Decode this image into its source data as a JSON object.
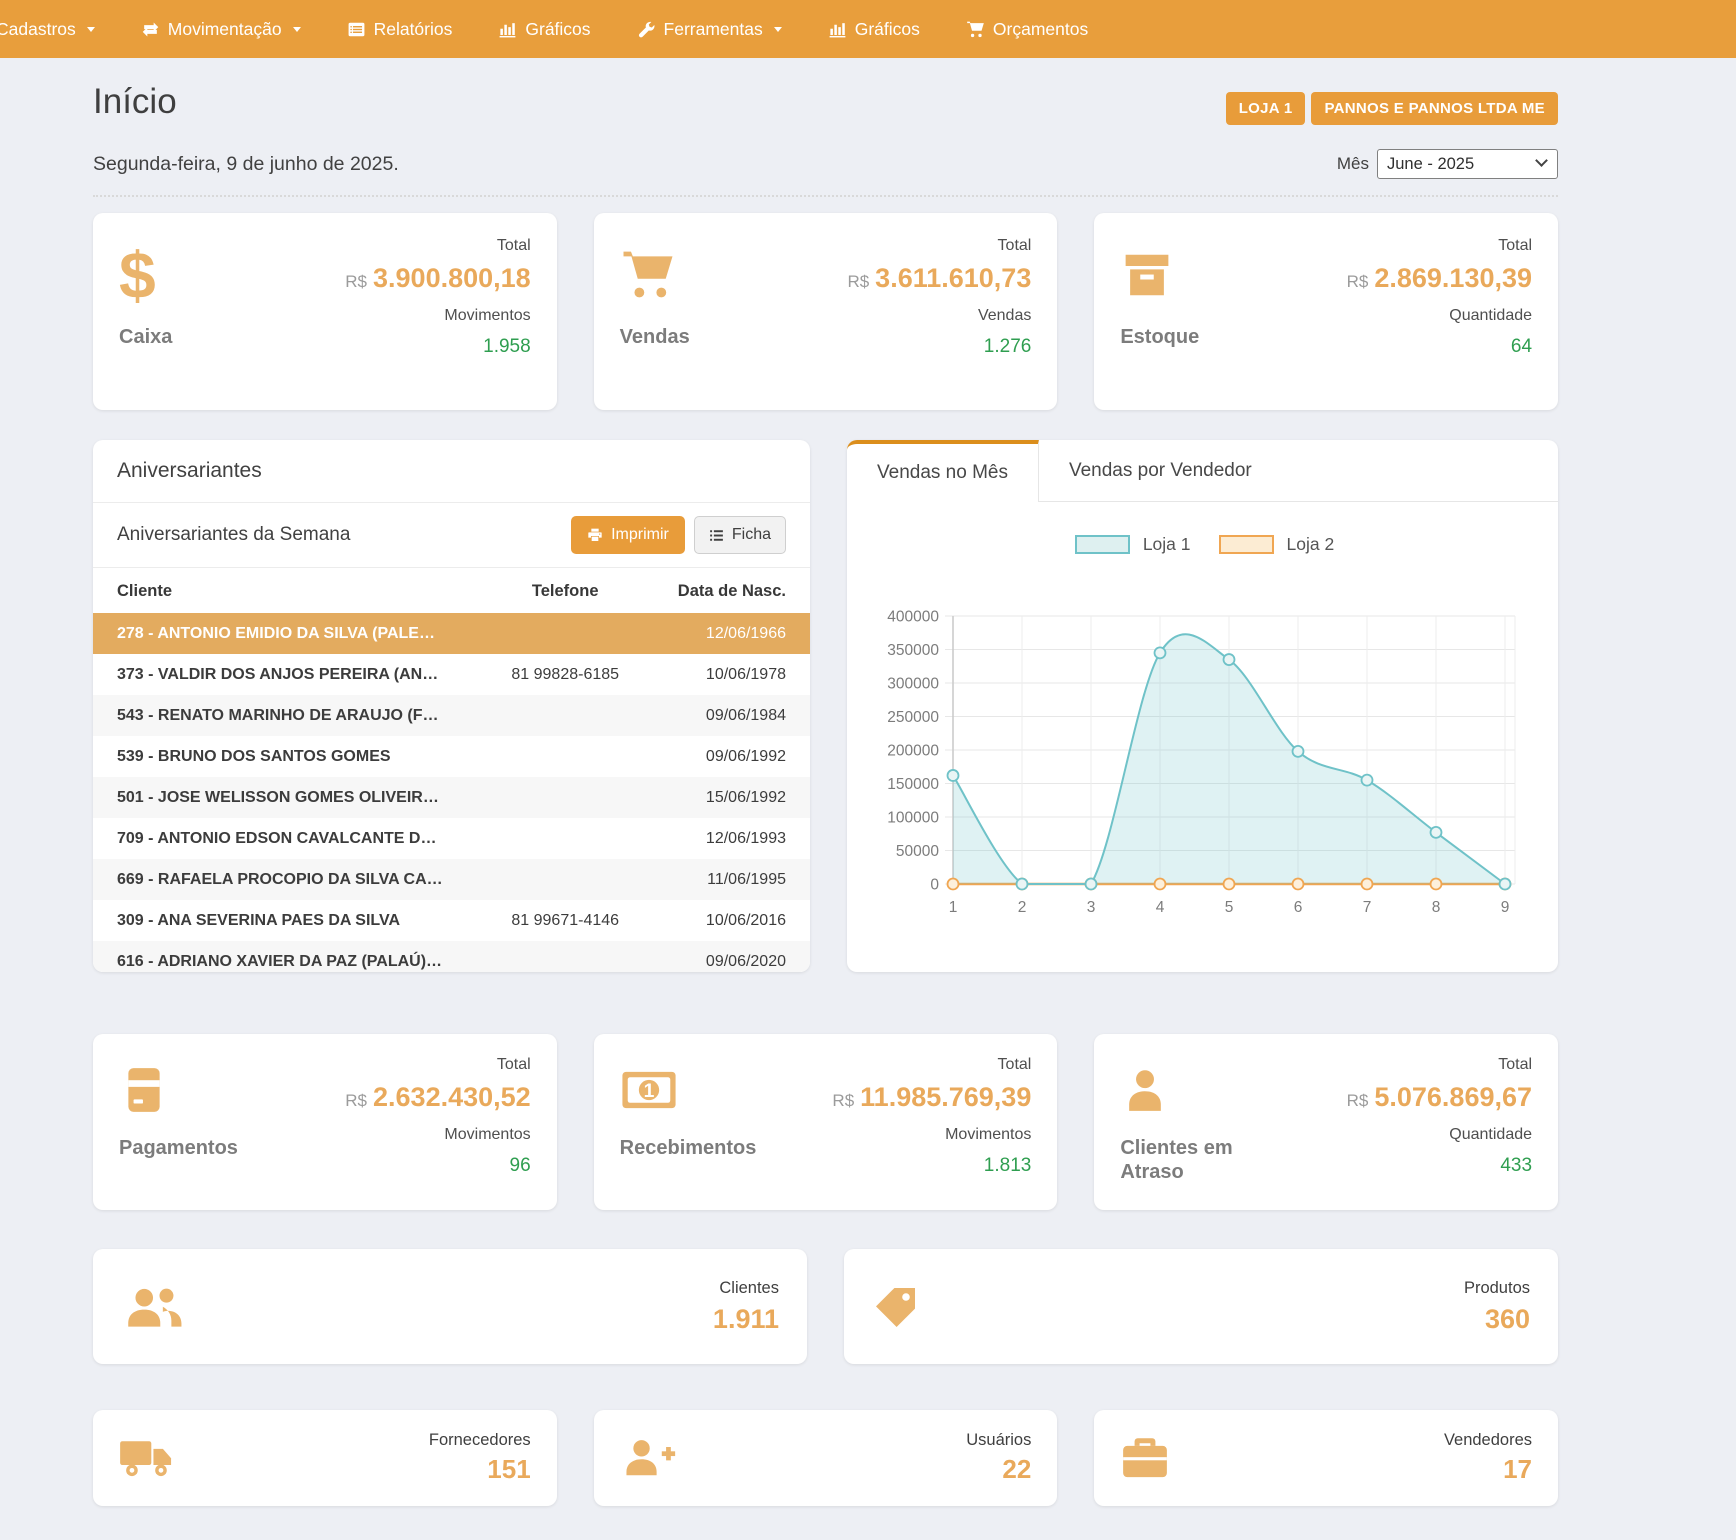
{
  "nav": {
    "items": [
      {
        "label": "Cadastros",
        "icon": "",
        "caret": true
      },
      {
        "label": "Movimentação",
        "icon": "exchange",
        "caret": true
      },
      {
        "label": "Relatórios",
        "icon": "list-alt",
        "caret": false
      },
      {
        "label": "Gráficos",
        "icon": "bar-chart",
        "caret": false
      },
      {
        "label": "Ferramentas",
        "icon": "wrench",
        "caret": true
      },
      {
        "label": "Gráficos",
        "icon": "bar-chart",
        "caret": false
      },
      {
        "label": "Orçamentos",
        "icon": "cart",
        "caret": false
      }
    ]
  },
  "header": {
    "title": "Início",
    "store_button": "LOJA 1",
    "company_button": "PANNOS E PANNOS LTDA ME",
    "date": "Segunda-feira, 9 de junho de 2025.",
    "month_label": "Mês",
    "month_value": "June - 2025"
  },
  "icons": {
    "dollar": "$"
  },
  "stats": {
    "caixa": {
      "label": "Caixa",
      "total_label": "Total",
      "currency": "R$",
      "total": "3.900.800,18",
      "count_label": "Movimentos",
      "count": "1.958"
    },
    "vendas": {
      "label": "Vendas",
      "total_label": "Total",
      "currency": "R$",
      "total": "3.611.610,73",
      "count_label": "Vendas",
      "count": "1.276"
    },
    "estoque": {
      "label": "Estoque",
      "total_label": "Total",
      "currency": "R$",
      "total": "2.869.130,39",
      "count_label": "Quantidade",
      "count": "64"
    },
    "pagamentos": {
      "label": "Pagamentos",
      "total_label": "Total",
      "currency": "R$",
      "total": "2.632.430,52",
      "count_label": "Movimentos",
      "count": "96"
    },
    "recebimentos": {
      "label": "Recebimentos",
      "total_label": "Total",
      "currency": "R$",
      "total": "11.985.769,39",
      "count_label": "Movimentos",
      "count": "1.813"
    },
    "clientes_atraso": {
      "label": "Clientes em Atraso",
      "total_label": "Total",
      "currency": "R$",
      "total": "5.076.869,67",
      "count_label": "Quantidade",
      "count": "433"
    }
  },
  "counters": {
    "clientes": {
      "label": "Clientes",
      "value": "1.911"
    },
    "produtos": {
      "label": "Produtos",
      "value": "360"
    },
    "fornecedores": {
      "label": "Fornecedores",
      "value": "151"
    },
    "usuarios": {
      "label": "Usuários",
      "value": "22"
    },
    "vendedores": {
      "label": "Vendedores",
      "value": "17"
    }
  },
  "aniversariantes": {
    "title": "Aniversariantes",
    "subtitle": "Aniversariantes da Semana",
    "print_button": "Imprimir",
    "ficha_button": "Ficha",
    "columns": [
      "Cliente",
      "Telefone",
      "Data de Nasc."
    ],
    "rows": [
      {
        "cliente": "278 - ANTONIO EMIDIO DA SILVA (PALE…",
        "telefone": "",
        "nascimento": "12/06/1966",
        "selected": true
      },
      {
        "cliente": "373 - VALDIR DOS ANJOS PEREIRA (AN…",
        "telefone": "81 99828-6185",
        "nascimento": "10/06/1978",
        "selected": false
      },
      {
        "cliente": "543 - RENATO MARINHO DE ARAUJO (F…",
        "telefone": "",
        "nascimento": "09/06/1984",
        "selected": false
      },
      {
        "cliente": "539 - BRUNO DOS SANTOS GOMES",
        "telefone": "",
        "nascimento": "09/06/1992",
        "selected": false
      },
      {
        "cliente": "501 - JOSE WELISSON GOMES OLIVEIR…",
        "telefone": "",
        "nascimento": "15/06/1992",
        "selected": false
      },
      {
        "cliente": "709 - ANTONIO EDSON CAVALCANTE D…",
        "telefone": "",
        "nascimento": "12/06/1993",
        "selected": false
      },
      {
        "cliente": "669 - RAFAELA PROCOPIO DA SILVA CA…",
        "telefone": "",
        "nascimento": "11/06/1995",
        "selected": false
      },
      {
        "cliente": "309 - ANA SEVERINA PAES DA SILVA",
        "telefone": "81 99671-4146",
        "nascimento": "10/06/2016",
        "selected": false
      },
      {
        "cliente": "616 - ADRIANO XAVIER DA PAZ (PALAÚ)…",
        "telefone": "",
        "nascimento": "09/06/2020",
        "selected": false
      }
    ]
  },
  "chart_panel": {
    "tabs": [
      "Vendas no Mês",
      "Vendas por Vendedor"
    ],
    "active_tab": 0
  },
  "chart_data": {
    "type": "area",
    "title": "",
    "x": [
      1,
      2,
      3,
      4,
      5,
      6,
      7,
      8,
      9
    ],
    "series": [
      {
        "name": "Loja 1",
        "values": [
          162000,
          0,
          0,
          345000,
          335000,
          198000,
          155000,
          77000,
          0
        ],
        "line_color": "#6fc2c8",
        "fill_color": "rgba(111,194,200,0.22)",
        "marker_fill": "#eaf5f5",
        "legend_fill": "#def0f0"
      },
      {
        "name": "Loja 2",
        "values": [
          0,
          0,
          0,
          0,
          0,
          0,
          0,
          0,
          0
        ],
        "line_color": "#f0a652",
        "fill_color": "rgba(240,166,82,0.15)",
        "marker_fill": "#fdf0dc",
        "legend_fill": "#fcecd3"
      }
    ],
    "xlabel": "",
    "ylabel": "",
    "ylim": [
      0,
      400000
    ],
    "ytick_step": 50000,
    "grid": true,
    "legend_position": "top"
  },
  "colors": {
    "accent_orange": "#e89e3c",
    "value_orange": "#e9a95b",
    "icon_orange": "#eab46c",
    "selected_row": "#e3ab5f",
    "success_green": "#2f9e50",
    "background": "#edeff4"
  }
}
